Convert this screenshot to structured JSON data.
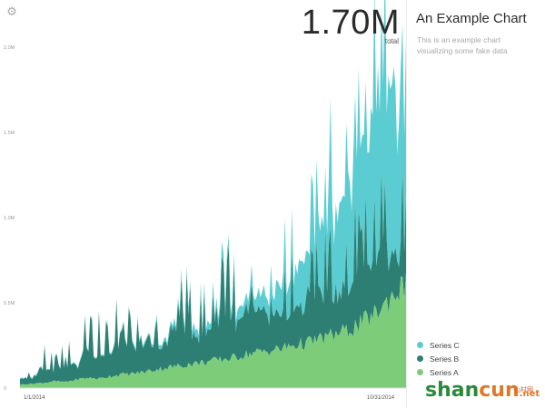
{
  "settings_icon": "gear-icon",
  "total": {
    "value": "1.70M",
    "label": "total"
  },
  "title": "An Example Chart",
  "subtitle": "This is an example chart visualizing some fake data",
  "colors": {
    "series_a": "#7ccc7a",
    "series_b": "#2d7f73",
    "series_c": "#5bcdd2"
  },
  "watermark": {
    "part1": "shan",
    "part2": "cun",
    "part3": ".net",
    "cn": "山村网"
  },
  "chart_data": {
    "type": "area",
    "stacked": true,
    "title": "An Example Chart",
    "subtitle": "This is an example chart visualizing some fake data",
    "xlabel": "",
    "ylabel": "",
    "x_ticks": [
      "1/1/2014",
      "10/31/2014"
    ],
    "y_ticks": [
      "0",
      "0.5M",
      "1.0M",
      "1.5M",
      "2.0M"
    ],
    "ylim": [
      0,
      2250000
    ],
    "grid": false,
    "legend_position": "bottom-right",
    "series": [
      {
        "name": "Series C",
        "color": "#5bcdd2",
        "values": [
          5000,
          4000,
          6000,
          5000,
          5000,
          6000,
          7000,
          8000,
          9000,
          10000,
          12000,
          14000,
          18000,
          25000,
          35000,
          40000,
          45000,
          45000,
          55000,
          60000,
          70000,
          90000,
          120000,
          150000,
          200000,
          260000,
          330000,
          420000,
          520000,
          600000,
          700000,
          800000,
          900000,
          880000,
          720000
        ]
      },
      {
        "name": "Series B",
        "color": "#2d7f73",
        "values": [
          40000,
          30000,
          100000,
          60000,
          120000,
          80000,
          180000,
          150000,
          130000,
          260000,
          140000,
          200000,
          130000,
          160000,
          320000,
          220000,
          150000,
          230000,
          330000,
          200000,
          260000,
          240000,
          200000,
          180000,
          220000,
          250000,
          260000,
          280000,
          250000,
          270000,
          300000,
          350000,
          330000,
          280000,
          220000
        ]
      },
      {
        "name": "Series A",
        "color": "#7ccc7a",
        "values": [
          20000,
          25000,
          30000,
          40000,
          35000,
          50000,
          60000,
          55000,
          70000,
          80000,
          85000,
          95000,
          110000,
          120000,
          130000,
          140000,
          150000,
          160000,
          170000,
          180000,
          200000,
          210000,
          220000,
          230000,
          250000,
          260000,
          280000,
          300000,
          320000,
          340000,
          380000,
          420000,
          480000,
          560000,
          600000
        ]
      }
    ]
  },
  "legend": [
    {
      "name": "Series C",
      "color": "#5bcdd2"
    },
    {
      "name": "Series B",
      "color": "#2d7f73"
    },
    {
      "name": "Series A",
      "color": "#7ccc7a"
    }
  ]
}
